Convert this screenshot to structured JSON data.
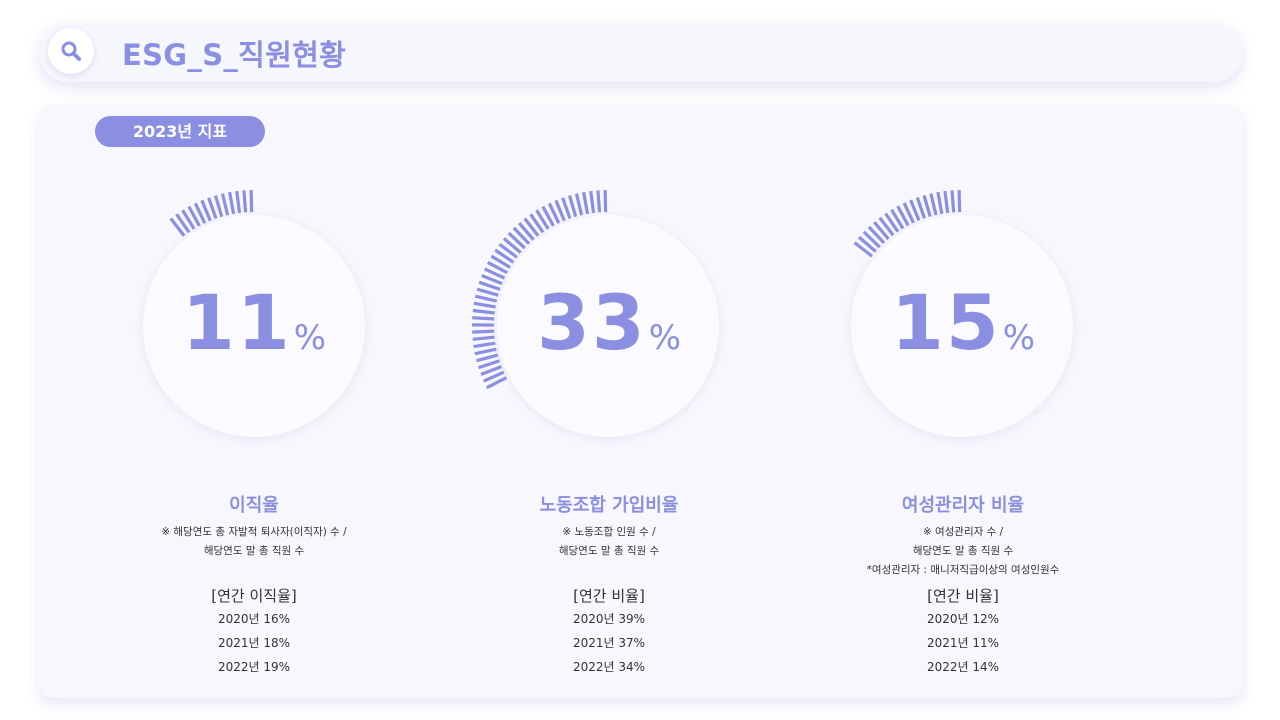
{
  "header": {
    "title": "ESG_S_직원현황",
    "icon": "search-icon"
  },
  "badge": "2023년 지표",
  "colors": {
    "accent": "#8a8fe2",
    "background": "#f8f7fd"
  },
  "metrics": [
    {
      "value": "11",
      "unit": "%",
      "percent": 11,
      "label": "이직율",
      "notes": [
        "※ 해당연도 총 자발적 퇴사자(이직자) 수 /",
        "해당연도 말 총 직원 수"
      ],
      "history_title": "[연간 이직율]",
      "history": [
        "2020년  16%",
        "2021년  18%",
        "2022년  19%"
      ]
    },
    {
      "value": "33",
      "unit": "%",
      "percent": 33,
      "label": "노동조합 가입비율",
      "notes": [
        "※  노동조합 인원 수 /",
        "해당연도 말 총 직원 수"
      ],
      "history_title": "[연간 비율]",
      "history": [
        "2020년  39%",
        "2021년  37%",
        "2022년  34%"
      ]
    },
    {
      "value": "15",
      "unit": "%",
      "percent": 15,
      "label": "여성관리자 비율",
      "notes": [
        "※  여성관리자 수 /",
        "해당연도 말 총 직원 수",
        "*여성관리자 : 매니저직급이상의 여성인원수"
      ],
      "history_title": "[연간 비율]",
      "history": [
        "2020년  12%",
        "2021년  11%",
        "2022년  14%"
      ]
    }
  ]
}
